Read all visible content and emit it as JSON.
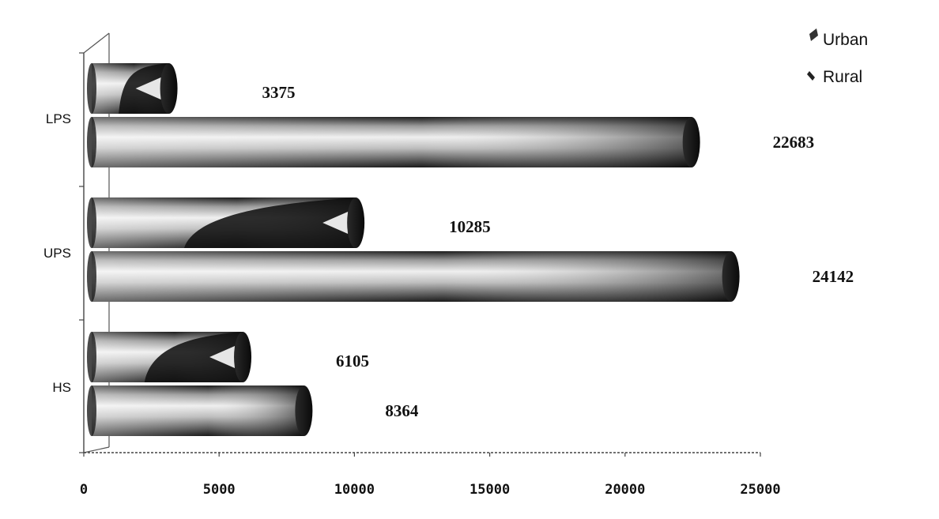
{
  "chart_data": {
    "type": "bar",
    "orientation": "horizontal",
    "style": "3d-cylinder",
    "categories": [
      "HS",
      "UPS",
      "LPS"
    ],
    "series": [
      {
        "name": "Urban",
        "values": [
          6105,
          10285,
          3375
        ]
      },
      {
        "name": "Rural",
        "values": [
          8364,
          24142,
          22683
        ]
      }
    ],
    "x_ticks": [
      "0",
      "5000",
      "10000",
      "15000",
      "20000",
      "25000"
    ],
    "xlim": [
      0,
      25000
    ],
    "data_labels": true,
    "legend": "top-right",
    "grid": false,
    "colors": {
      "bar_dark": "#111111",
      "bar_light": "#e8e8e8",
      "axis": "#444444"
    }
  }
}
